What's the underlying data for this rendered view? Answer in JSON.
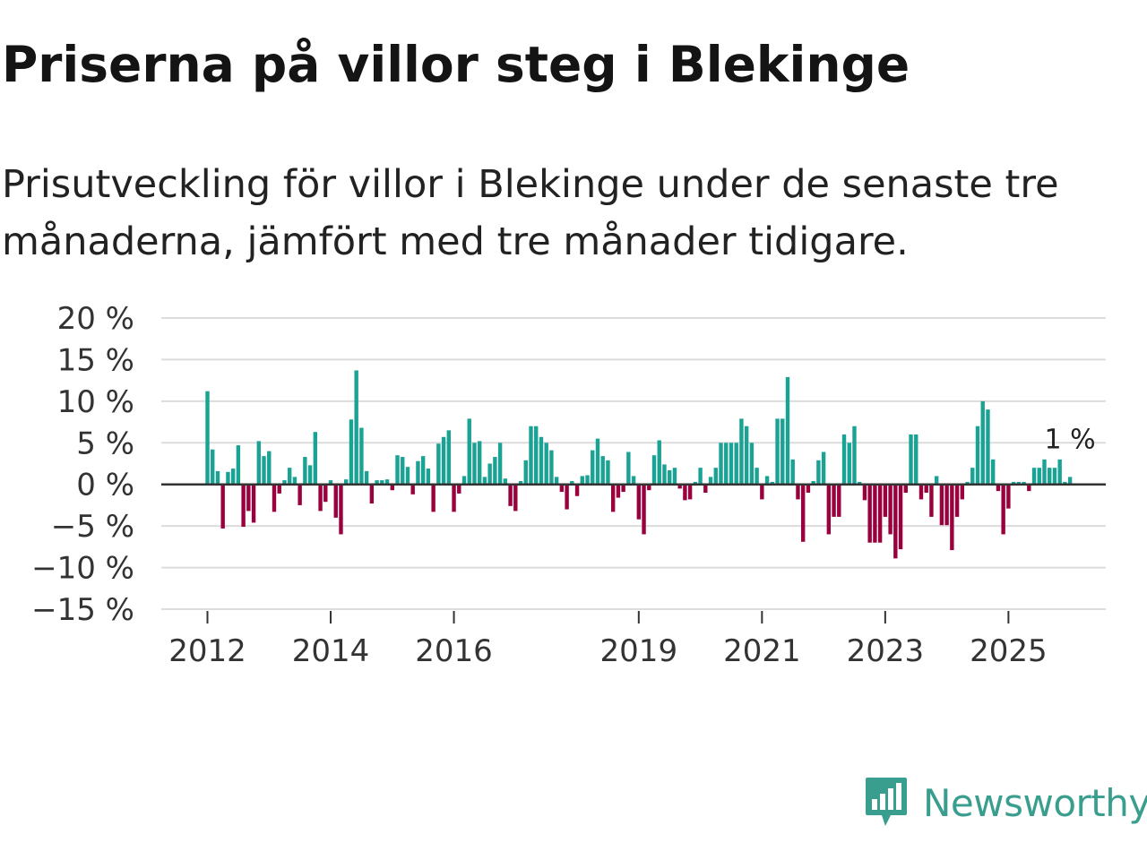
{
  "header": {
    "title": "Priserna på villor steg i Blekinge",
    "subtitle": "Prisutveckling för villor i Blekinge under de senaste tre månaderna, jämfört med tre månader tidigare."
  },
  "colors": {
    "positive": "#1aa394",
    "negative": "#99003d",
    "grid": "#dcdcdc",
    "zero_line": "#333333",
    "brand": "#3a9e8f"
  },
  "brand": {
    "name": "Newsworthy",
    "icon": "newsworthy-logo-icon"
  },
  "chart_data": {
    "type": "bar",
    "title": "Priserna på villor steg i Blekinge",
    "xlabel": "",
    "ylabel": "",
    "unit": "%",
    "ylim": [
      -15,
      20
    ],
    "y_ticks": [
      20,
      15,
      10,
      5,
      0,
      -5,
      -10,
      -15
    ],
    "y_tick_labels": [
      "20 %",
      "15 %",
      "10 %",
      "5 %",
      "0 %",
      "−5 %",
      "−10 %",
      "−15 %"
    ],
    "x_ticks": [
      {
        "year": 2012,
        "label": "2012"
      },
      {
        "year": 2014,
        "label": "2014"
      },
      {
        "year": 2016,
        "label": "2016"
      },
      {
        "year": 2019,
        "label": "2019"
      },
      {
        "year": 2021,
        "label": "2021"
      },
      {
        "year": 2023,
        "label": "2023"
      },
      {
        "year": 2025,
        "label": "2025"
      }
    ],
    "start": {
      "year": 2012,
      "month": 1
    },
    "grid": true,
    "annotation": {
      "text": "1 %",
      "value": 1
    },
    "values": [
      11.2,
      4.2,
      1.6,
      -5.3,
      1.5,
      1.9,
      4.7,
      -5.1,
      -3.2,
      -4.6,
      5.2,
      3.4,
      4.0,
      -3.3,
      -1.1,
      0.5,
      2.0,
      0.9,
      -2.5,
      3.3,
      2.3,
      6.3,
      -3.2,
      -2.1,
      0.5,
      -4.0,
      -6.0,
      0.6,
      7.8,
      13.7,
      6.8,
      1.6,
      -2.3,
      0.5,
      0.5,
      0.6,
      -0.7,
      3.5,
      3.3,
      2.1,
      -1.2,
      2.8,
      3.4,
      1.9,
      -3.3,
      4.9,
      5.7,
      6.5,
      -3.3,
      -1.1,
      1.0,
      7.9,
      5.0,
      5.2,
      0.9,
      2.5,
      3.3,
      5.0,
      0.7,
      -2.6,
      -3.2,
      0.4,
      2.9,
      7.0,
      7.0,
      5.7,
      5.0,
      4.1,
      0.9,
      -0.9,
      -3.0,
      0.4,
      -1.4,
      1.0,
      1.1,
      4.1,
      5.5,
      3.4,
      2.9,
      -3.3,
      -1.6,
      -0.9,
      3.9,
      1.0,
      -4.2,
      -6.0,
      -0.7,
      3.5,
      5.3,
      2.4,
      1.7,
      2.0,
      -0.5,
      -1.9,
      -1.8,
      0.3,
      2.0,
      -1.0,
      0.9,
      2.0,
      5.0,
      5.0,
      5.0,
      5.0,
      7.9,
      7.0,
      5.0,
      2.0,
      -1.8,
      1.0,
      0.3,
      7.9,
      7.9,
      12.9,
      3.0,
      -1.8,
      -6.9,
      -1.0,
      0.4,
      2.9,
      3.9,
      -6.0,
      -3.9,
      -3.9,
      6.0,
      5.0,
      7.0,
      0.3,
      -1.9,
      -7.0,
      -7.0,
      -7.0,
      -3.9,
      -6.0,
      -8.9,
      -7.8,
      -1.0,
      6.0,
      6.0,
      -1.8,
      -1.0,
      -3.9,
      1.0,
      -4.9,
      -4.9,
      -7.9,
      -3.9,
      -1.8,
      0.3,
      2.0,
      7.0,
      10.0,
      9.0,
      3.0,
      -0.8,
      -6.0,
      -2.9,
      0.3,
      0.3,
      0.3,
      -0.8,
      2.0,
      2.0,
      3.0,
      2.0,
      2.0,
      3.0,
      0.3,
      0.9
    ]
  }
}
